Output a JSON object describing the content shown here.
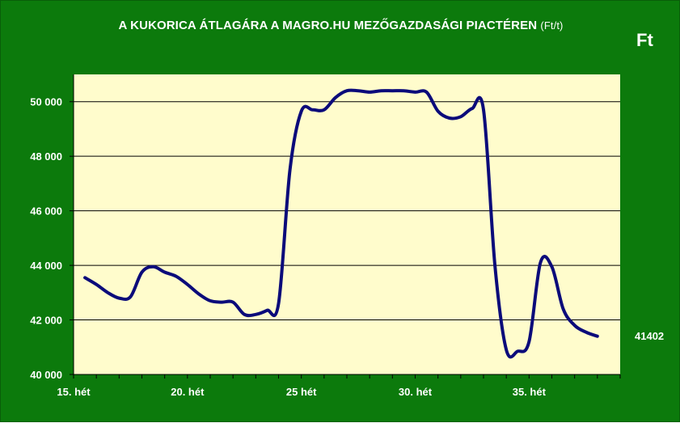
{
  "chart_data": {
    "type": "line",
    "title": "A KUKORICA ÁTLAGÁRA A MAGRO.HU MEZŐGAZDASÁGI PIACTÉREN",
    "title_unit": "(Ft/t)",
    "currency_label": "Ft",
    "last_value_label": "41402",
    "ylim": [
      40000,
      51000
    ],
    "y_ticks": [
      40000,
      42000,
      44000,
      46000,
      48000,
      50000
    ],
    "y_tick_labels": [
      "40 000",
      "42 000",
      "44 000",
      "46 000",
      "48 000",
      "50 000"
    ],
    "x_range": [
      15,
      39
    ],
    "x_ticks": [
      15,
      20,
      25,
      30,
      35
    ],
    "x_tick_labels": [
      "15. hét",
      "20. hét",
      "25 hét",
      "30. hét",
      "35. hét"
    ],
    "grid": true,
    "series": [
      {
        "x": [
          15.5,
          16,
          16.5,
          17,
          17.5,
          18,
          18.5,
          19,
          19.5,
          20,
          20.5,
          21,
          21.5,
          22,
          22.5,
          23,
          23.5,
          24,
          24.5,
          25,
          25.5,
          26,
          26.5,
          27,
          27.5,
          28,
          28.5,
          29,
          29.5,
          30,
          30.5,
          31,
          31.5,
          32,
          32.5,
          33,
          33.5,
          34,
          34.5,
          35,
          35.5,
          36,
          36.5,
          37,
          37.5,
          38
        ],
        "values": [
          43550,
          43300,
          43000,
          42800,
          42850,
          43750,
          43950,
          43750,
          43600,
          43300,
          42950,
          42700,
          42650,
          42650,
          42200,
          42200,
          42350,
          42600,
          47500,
          49650,
          49700,
          49700,
          50150,
          50400,
          50400,
          50350,
          50400,
          50400,
          50400,
          50350,
          50350,
          49650,
          49400,
          49450,
          49750,
          49700,
          44000,
          40900,
          40850,
          41200,
          44100,
          43950,
          42400,
          41800,
          41550,
          41402
        ],
        "color": "#0b0b7a"
      }
    ]
  },
  "colors": {
    "frame_bg": "#0c7a0c",
    "plot_bg": "#fffccc",
    "line": "#0b0b7a",
    "text": "#ffffff"
  }
}
